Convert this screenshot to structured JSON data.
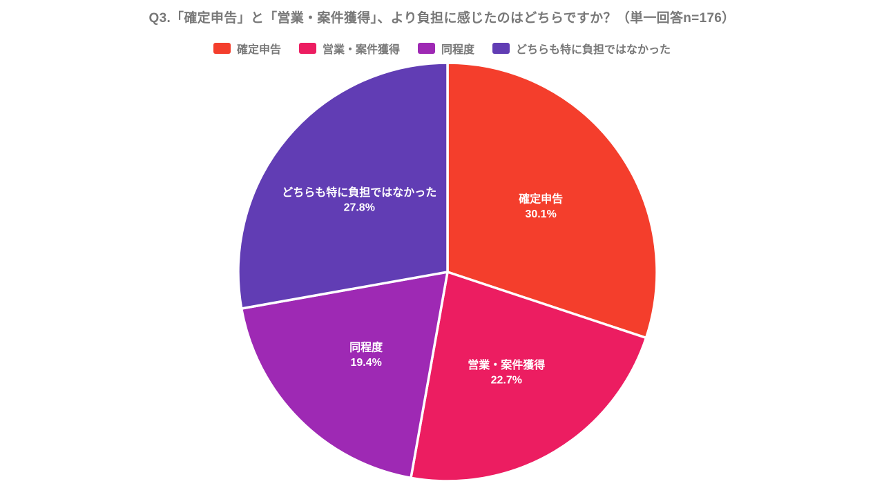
{
  "title": "Q3.「確定申告」と「営業・案件獲得」、より負担に感じたのはどちらですか？（単一回答n=176）",
  "chart_data": {
    "type": "pie",
    "title": "Q3.「確定申告」と「営業・案件獲得」、より負担に感じたのはどちらですか？（単一回答n=176）",
    "sample_note": "単一回答n=176",
    "start_angle_deg": 0,
    "direction": "clockwise",
    "legend_position": "top",
    "label_text_color": "#FFFFFF",
    "slices": [
      {
        "label": "確定申告",
        "value": 30.1,
        "display": "30.1%",
        "color": "#F43E2C"
      },
      {
        "label": "営業・案件獲得",
        "value": 22.7,
        "display": "22.7%",
        "color": "#EC1D61"
      },
      {
        "label": "同程度",
        "value": 19.4,
        "display": "19.4%",
        "color": "#9E29B4"
      },
      {
        "label": "どちらも特に負担ではなかった",
        "value": 27.8,
        "display": "27.8%",
        "color": "#613DB4"
      }
    ]
  },
  "colors": {
    "background": "#FFFFFF",
    "title_text": "#787878",
    "legend_text": "#787878",
    "slice_separator": "#FFFFFF"
  }
}
